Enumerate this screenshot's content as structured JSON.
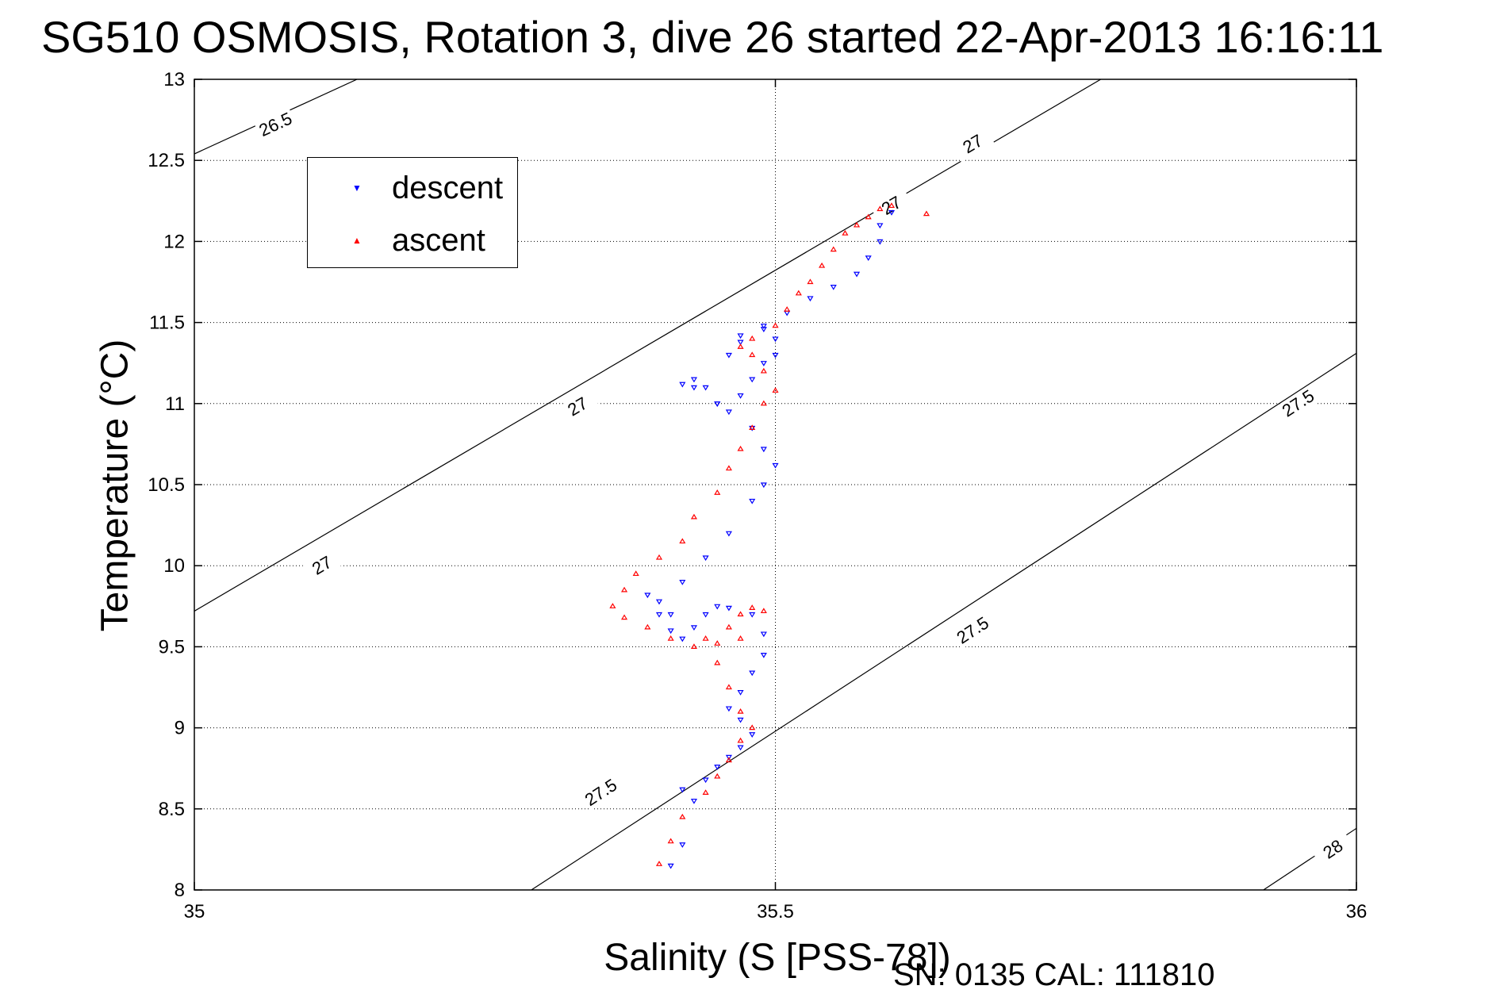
{
  "title": "SG510 OSMOSIS, Rotation 3, dive 26 started 22-Apr-2013 16:16:11",
  "footer": "SN: 0135  CAL: 111810",
  "colors": {
    "descent": "#0000ff",
    "ascent": "#ff0000",
    "axis": "#000000",
    "grid": "#000000"
  },
  "chart_data": {
    "type": "scatter",
    "title": "SG510 OSMOSIS, Rotation 3, dive 26 started 22-Apr-2013 16:16:11",
    "xlabel": "Salinity (S [PSS-78])",
    "ylabel": "Temperature (°C)",
    "xlim": [
      35,
      36
    ],
    "ylim": [
      8,
      13
    ],
    "xticks": [
      "35",
      "35.5",
      "36"
    ],
    "yticks": [
      "8",
      "8.5",
      "9",
      "9.5",
      "10",
      "10.5",
      "11",
      "11.5",
      "12",
      "12.5",
      "13"
    ],
    "grid": true,
    "legend_position": "top-left",
    "contour_labels": [
      "26.5",
      "27",
      "27",
      "27",
      "27",
      "27.5",
      "27.5",
      "27.5",
      "28"
    ],
    "isopycnals": [
      {
        "level": 26.5,
        "points": [
          [
            35.0,
            12.54
          ],
          [
            35.14,
            13.0
          ]
        ]
      },
      {
        "level": 27.0,
        "points": [
          [
            35.0,
            9.72
          ],
          [
            35.78,
            13.0
          ]
        ]
      },
      {
        "level": 27.5,
        "points": [
          [
            35.29,
            8.0
          ],
          [
            36.0,
            11.31
          ]
        ]
      },
      {
        "level": 28.0,
        "points": [
          [
            35.92,
            8.0
          ],
          [
            36.0,
            8.38
          ]
        ]
      }
    ],
    "series": [
      {
        "name": "descent",
        "marker": "triangle-down",
        "color": "#0000ff",
        "x": [
          35.41,
          35.42,
          35.43,
          35.42,
          35.44,
          35.45,
          35.46,
          35.47,
          35.48,
          35.47,
          35.46,
          35.47,
          35.48,
          35.49,
          35.49,
          35.48,
          35.46,
          35.45,
          35.44,
          35.43,
          35.42,
          35.41,
          35.4,
          35.39,
          35.4,
          35.41,
          35.42,
          35.44,
          35.46,
          35.48,
          35.49,
          35.5,
          35.49,
          35.48,
          35.45,
          35.43,
          35.42,
          35.43,
          35.44,
          35.45,
          35.46,
          35.47,
          35.48,
          35.49,
          35.5,
          35.5,
          35.49,
          35.47,
          35.46,
          35.47,
          35.49,
          35.51,
          35.53,
          35.55,
          35.57,
          35.58,
          35.59,
          35.59,
          35.6
        ],
        "y": [
          8.15,
          8.28,
          8.55,
          8.62,
          8.68,
          8.76,
          8.82,
          8.88,
          8.96,
          9.05,
          9.12,
          9.22,
          9.34,
          9.45,
          9.58,
          9.7,
          9.74,
          9.75,
          9.7,
          9.62,
          9.55,
          9.6,
          9.7,
          9.82,
          9.78,
          9.7,
          9.9,
          10.05,
          10.2,
          10.4,
          10.5,
          10.62,
          10.72,
          10.85,
          11.0,
          11.1,
          11.12,
          11.15,
          11.1,
          11.0,
          10.95,
          11.05,
          11.15,
          11.25,
          11.3,
          11.4,
          11.46,
          11.38,
          11.3,
          11.42,
          11.48,
          11.56,
          11.65,
          11.72,
          11.8,
          11.9,
          12.0,
          12.1,
          12.18
        ]
      },
      {
        "name": "ascent",
        "marker": "triangle-up",
        "color": "#ff0000",
        "x": [
          35.4,
          35.41,
          35.42,
          35.44,
          35.45,
          35.46,
          35.47,
          35.48,
          35.47,
          35.46,
          35.45,
          35.44,
          35.46,
          35.47,
          35.48,
          35.49,
          35.47,
          35.45,
          35.43,
          35.41,
          35.39,
          35.37,
          35.36,
          35.37,
          35.38,
          35.4,
          35.42,
          35.43,
          35.45,
          35.46,
          35.47,
          35.48,
          35.49,
          35.5,
          35.49,
          35.48,
          35.47,
          35.48,
          35.5,
          35.51,
          35.52,
          35.53,
          35.54,
          35.55,
          35.56,
          35.57,
          35.58,
          35.59,
          35.6,
          35.63
        ],
        "y": [
          8.16,
          8.3,
          8.45,
          8.6,
          8.7,
          8.8,
          8.92,
          9.0,
          9.1,
          9.25,
          9.4,
          9.55,
          9.62,
          9.7,
          9.74,
          9.72,
          9.55,
          9.52,
          9.5,
          9.55,
          9.62,
          9.68,
          9.75,
          9.85,
          9.95,
          10.05,
          10.15,
          10.3,
          10.45,
          10.6,
          10.72,
          10.85,
          11.0,
          11.08,
          11.2,
          11.3,
          11.35,
          11.4,
          11.48,
          11.58,
          11.68,
          11.75,
          11.85,
          11.95,
          12.05,
          12.1,
          12.15,
          12.2,
          12.22,
          12.17
        ]
      }
    ]
  },
  "legend": {
    "items": [
      {
        "label": "descent"
      },
      {
        "label": "ascent"
      }
    ]
  }
}
